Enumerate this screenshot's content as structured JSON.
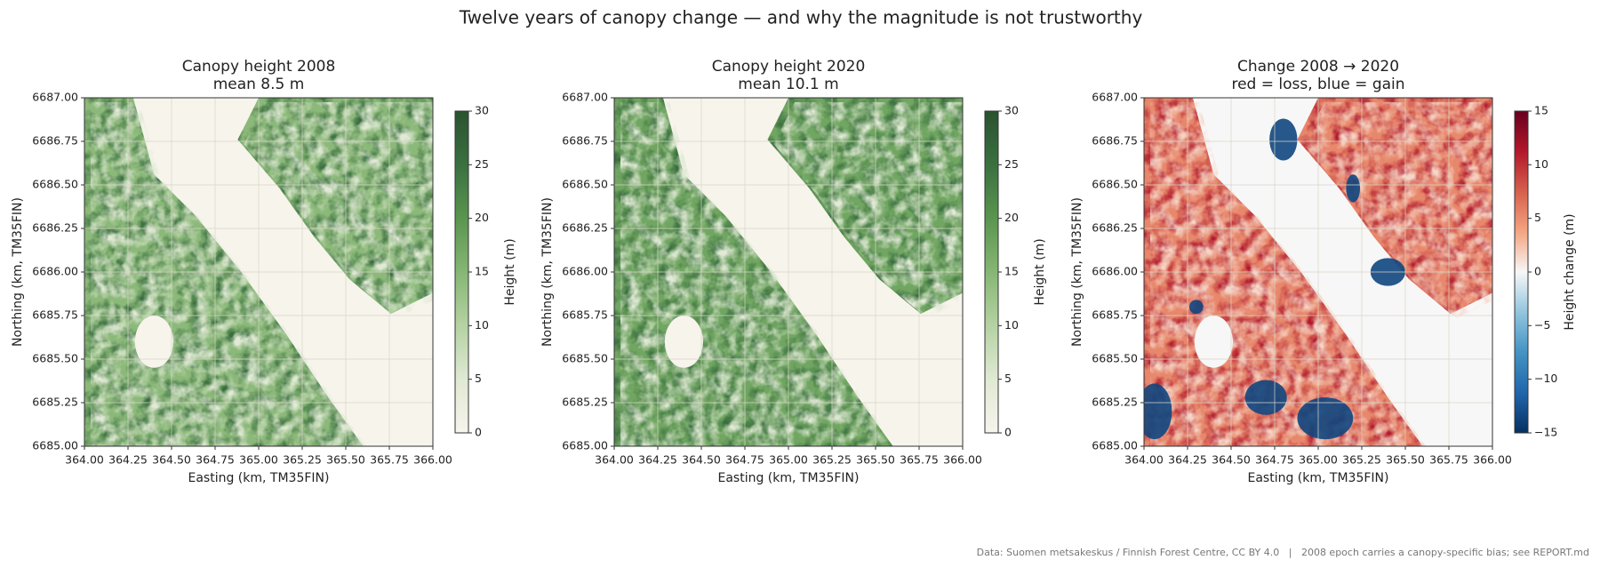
{
  "title": "Twelve years of canopy change — and why the magnitude is not trustworthy",
  "footer": "Data: Suomen metsakeskus / Finnish Forest Centre, CC BY 4.0   |   2008 epoch carries a canopy-specific bias; see REPORT.md",
  "chart_data": [
    {
      "type": "heatmap",
      "title": "Canopy height 2008",
      "subtitle": "mean 8.5 m",
      "xlabel": "Easting (km, TM35FIN)",
      "ylabel": "Northing (km, TM35FIN)",
      "xlim": [
        364,
        366
      ],
      "xticks": [
        {
          "value": 364,
          "label": "364.00"
        },
        {
          "value": 364.25,
          "label": "364.25"
        },
        {
          "value": 364.5,
          "label": "364.50"
        },
        {
          "value": 364.75,
          "label": "364.75"
        },
        {
          "value": 365,
          "label": "365.00"
        },
        {
          "value": 365.25,
          "label": "365.25"
        },
        {
          "value": 365.5,
          "label": "365.50"
        },
        {
          "value": 365.75,
          "label": "365.75"
        },
        {
          "value": 366,
          "label": "366.00"
        }
      ],
      "ylim": [
        6685,
        6687
      ],
      "yticks": [
        {
          "value": 6685,
          "label": "6685.00"
        },
        {
          "value": 6685.25,
          "label": "6685.25"
        },
        {
          "value": 6685.5,
          "label": "6685.50"
        },
        {
          "value": 6685.75,
          "label": "6685.75"
        },
        {
          "value": 6686,
          "label": "6686.00"
        },
        {
          "value": 6686.25,
          "label": "6686.25"
        },
        {
          "value": 6686.5,
          "label": "6686.50"
        },
        {
          "value": 6686.75,
          "label": "6686.75"
        },
        {
          "value": 6687,
          "label": "6687.00"
        }
      ],
      "grid": true,
      "colorbar": {
        "label": "Height (m)",
        "lim": [
          0,
          30
        ],
        "ticks": [
          0,
          5,
          10,
          15,
          20,
          25,
          30
        ],
        "colormap": [
          "#f7f4ec",
          "#dfe9d3",
          "#b5d2a3",
          "#86b674",
          "#5a954f",
          "#3a7040",
          "#2a5230"
        ]
      }
    },
    {
      "type": "heatmap",
      "title": "Canopy height 2020",
      "subtitle": "mean 10.1 m",
      "xlabel": "Easting (km, TM35FIN)",
      "ylabel": "Northing (km, TM35FIN)",
      "xlim": [
        364,
        366
      ],
      "xticks": [
        {
          "value": 364,
          "label": "364.00"
        },
        {
          "value": 364.25,
          "label": "364.25"
        },
        {
          "value": 364.5,
          "label": "364.50"
        },
        {
          "value": 364.75,
          "label": "364.75"
        },
        {
          "value": 365,
          "label": "365.00"
        },
        {
          "value": 365.25,
          "label": "365.25"
        },
        {
          "value": 365.5,
          "label": "365.50"
        },
        {
          "value": 365.75,
          "label": "365.75"
        },
        {
          "value": 366,
          "label": "366.00"
        }
      ],
      "ylim": [
        6685,
        6687
      ],
      "yticks": [
        {
          "value": 6685,
          "label": "6685.00"
        },
        {
          "value": 6685.25,
          "label": "6685.25"
        },
        {
          "value": 6685.5,
          "label": "6685.50"
        },
        {
          "value": 6685.75,
          "label": "6685.75"
        },
        {
          "value": 6686,
          "label": "6686.00"
        },
        {
          "value": 6686.25,
          "label": "6686.25"
        },
        {
          "value": 6686.5,
          "label": "6686.50"
        },
        {
          "value": 6686.75,
          "label": "6686.75"
        },
        {
          "value": 6687,
          "label": "6687.00"
        }
      ],
      "grid": true,
      "colorbar": {
        "label": "Height (m)",
        "lim": [
          0,
          30
        ],
        "ticks": [
          0,
          5,
          10,
          15,
          20,
          25,
          30
        ],
        "colormap": [
          "#f7f4ec",
          "#dfe9d3",
          "#b5d2a3",
          "#86b674",
          "#5a954f",
          "#3a7040",
          "#2a5230"
        ]
      }
    },
    {
      "type": "heatmap",
      "title": "Change 2008 → 2020",
      "subtitle": "red = loss, blue = gain",
      "xlabel": "Easting (km, TM35FIN)",
      "ylabel": "Northing (km, TM35FIN)",
      "xlim": [
        364,
        366
      ],
      "xticks": [
        {
          "value": 364,
          "label": "364.00"
        },
        {
          "value": 364.25,
          "label": "364.25"
        },
        {
          "value": 364.5,
          "label": "364.50"
        },
        {
          "value": 364.75,
          "label": "364.75"
        },
        {
          "value": 365,
          "label": "365.00"
        },
        {
          "value": 365.25,
          "label": "365.25"
        },
        {
          "value": 365.5,
          "label": "365.50"
        },
        {
          "value": 365.75,
          "label": "365.75"
        },
        {
          "value": 366,
          "label": "366.00"
        }
      ],
      "ylim": [
        6685,
        6687
      ],
      "yticks": [
        {
          "value": 6685,
          "label": "6685.00"
        },
        {
          "value": 6685.25,
          "label": "6685.25"
        },
        {
          "value": 6685.5,
          "label": "6685.50"
        },
        {
          "value": 6685.75,
          "label": "6685.75"
        },
        {
          "value": 6686,
          "label": "6686.00"
        },
        {
          "value": 6686.25,
          "label": "6686.25"
        },
        {
          "value": 6686.5,
          "label": "6686.50"
        },
        {
          "value": 6686.75,
          "label": "6686.75"
        },
        {
          "value": 6687,
          "label": "6687.00"
        }
      ],
      "grid": true,
      "colorbar": {
        "label": "Height change (m)",
        "lim": [
          -15,
          15
        ],
        "ticks": [
          {
            "value": -15,
            "label": "−15"
          },
          {
            "value": -10,
            "label": "−10"
          },
          {
            "value": -5,
            "label": "−5"
          },
          0,
          5,
          10,
          15
        ],
        "colormap": [
          "#053061",
          "#2166ac",
          "#4393c3",
          "#92c5de",
          "#f7f7f7",
          "#f4a582",
          "#d6604d",
          "#b2182b",
          "#67001f"
        ]
      }
    }
  ]
}
